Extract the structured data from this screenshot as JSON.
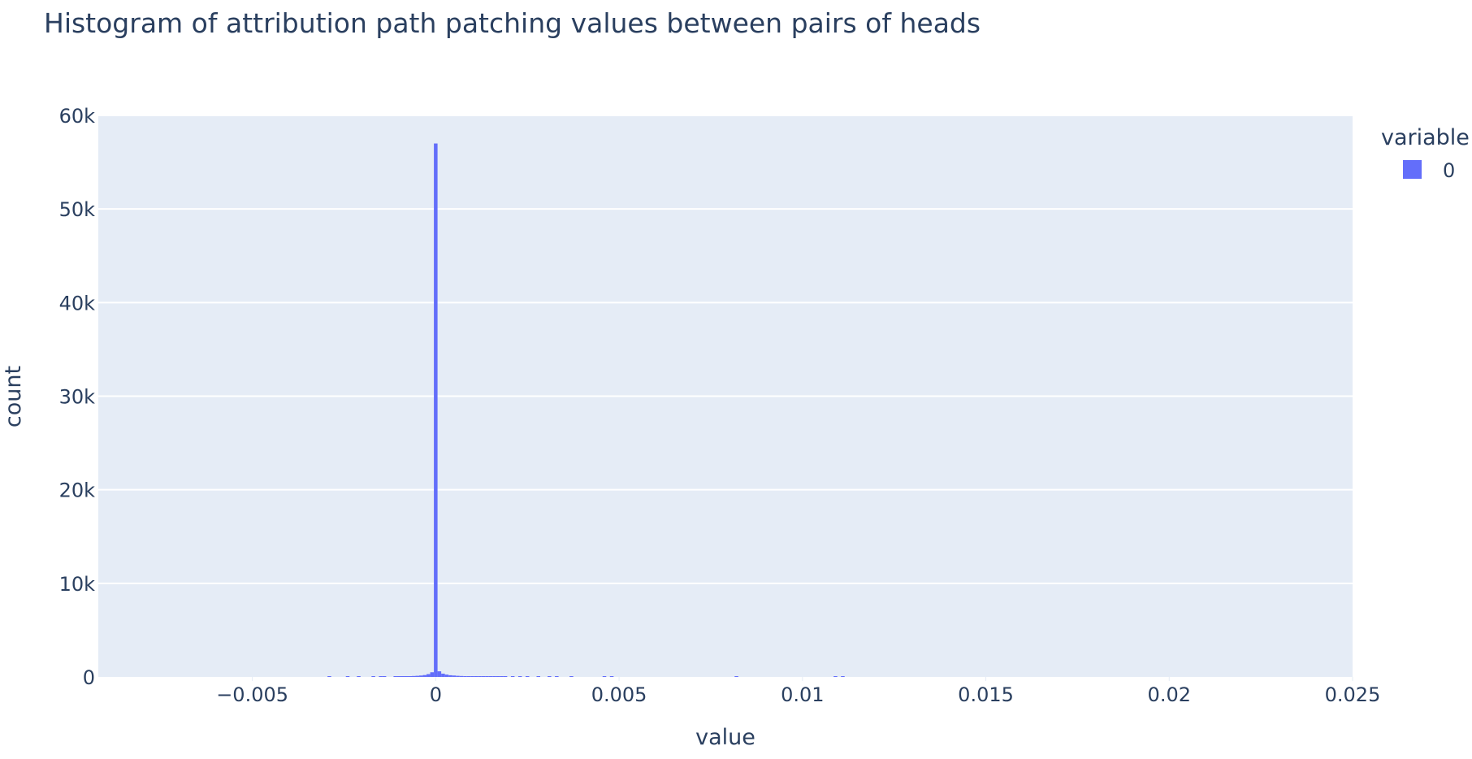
{
  "chart_data": {
    "type": "bar",
    "chart_kind": "histogram",
    "title": "Histogram of attribution path patching values between pairs of heads",
    "xlabel": "value",
    "ylabel": "count",
    "xlim": [
      -0.0092,
      0.025
    ],
    "ylim": [
      0,
      60000
    ],
    "x_ticks": [
      {
        "value": -0.005,
        "label": "−0.005"
      },
      {
        "value": 0,
        "label": "0"
      },
      {
        "value": 0.005,
        "label": "0.005"
      },
      {
        "value": 0.01,
        "label": "0.01"
      },
      {
        "value": 0.015,
        "label": "0.015"
      },
      {
        "value": 0.02,
        "label": "0.02"
      },
      {
        "value": 0.025,
        "label": "0.025"
      }
    ],
    "y_ticks": [
      {
        "value": 0,
        "label": "0"
      },
      {
        "value": 10000,
        "label": "10k"
      },
      {
        "value": 20000,
        "label": "20k"
      },
      {
        "value": 30000,
        "label": "30k"
      },
      {
        "value": 40000,
        "label": "40k"
      },
      {
        "value": 50000,
        "label": "50k"
      },
      {
        "value": 60000,
        "label": "60k"
      }
    ],
    "grid": true,
    "legend": {
      "title": "variable",
      "placement": "top-right",
      "items": [
        {
          "name": "0",
          "color": "#636efa"
        }
      ]
    },
    "series": [
      {
        "name": "0",
        "color": "#636efa",
        "bin_width": 0.0001,
        "bins": [
          {
            "x": -0.0029,
            "count": 8
          },
          {
            "x": -0.0024,
            "count": 10
          },
          {
            "x": -0.0021,
            "count": 12
          },
          {
            "x": -0.0017,
            "count": 15
          },
          {
            "x": -0.0015,
            "count": 20
          },
          {
            "x": -0.0014,
            "count": 25
          },
          {
            "x": -0.0011,
            "count": 30
          },
          {
            "x": -0.001,
            "count": 40
          },
          {
            "x": -0.0009,
            "count": 50
          },
          {
            "x": -0.0008,
            "count": 60
          },
          {
            "x": -0.0007,
            "count": 80
          },
          {
            "x": -0.0006,
            "count": 100
          },
          {
            "x": -0.0005,
            "count": 120
          },
          {
            "x": -0.0004,
            "count": 150
          },
          {
            "x": -0.0003,
            "count": 200
          },
          {
            "x": -0.0002,
            "count": 300
          },
          {
            "x": -0.0001,
            "count": 500
          },
          {
            "x": 0.0,
            "count": 57000
          },
          {
            "x": 0.0001,
            "count": 600
          },
          {
            "x": 0.0002,
            "count": 350
          },
          {
            "x": 0.0003,
            "count": 250
          },
          {
            "x": 0.0004,
            "count": 180
          },
          {
            "x": 0.0005,
            "count": 150
          },
          {
            "x": 0.0006,
            "count": 120
          },
          {
            "x": 0.0007,
            "count": 100
          },
          {
            "x": 0.0008,
            "count": 80
          },
          {
            "x": 0.0009,
            "count": 70
          },
          {
            "x": 0.001,
            "count": 60
          },
          {
            "x": 0.0011,
            "count": 50
          },
          {
            "x": 0.0012,
            "count": 40
          },
          {
            "x": 0.0013,
            "count": 30
          },
          {
            "x": 0.0014,
            "count": 25
          },
          {
            "x": 0.0015,
            "count": 20
          },
          {
            "x": 0.0016,
            "count": 15
          },
          {
            "x": 0.0017,
            "count": 12
          },
          {
            "x": 0.0018,
            "count": 10
          },
          {
            "x": 0.0019,
            "count": 8
          },
          {
            "x": 0.0021,
            "count": 6
          },
          {
            "x": 0.0023,
            "count": 5
          },
          {
            "x": 0.0025,
            "count": 4
          },
          {
            "x": 0.0028,
            "count": 3
          },
          {
            "x": 0.0031,
            "count": 3
          },
          {
            "x": 0.0033,
            "count": 2
          },
          {
            "x": 0.0037,
            "count": 2
          },
          {
            "x": 0.0046,
            "count": 2
          },
          {
            "x": 0.0048,
            "count": 2
          },
          {
            "x": 0.0082,
            "count": 1
          },
          {
            "x": 0.0109,
            "count": 1
          },
          {
            "x": 0.0111,
            "count": 1
          }
        ]
      }
    ]
  }
}
